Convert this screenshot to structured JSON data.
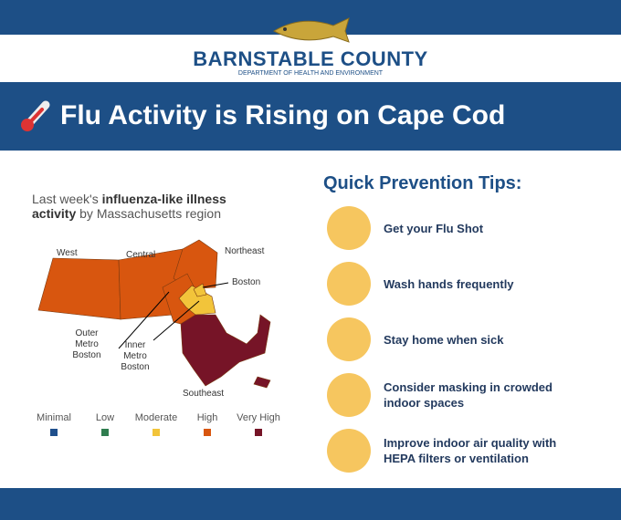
{
  "header": {
    "org": "BARNSTABLE COUNTY",
    "dept": "DEPARTMENT OF HEALTH AND ENVIRONMENT"
  },
  "title": "Flu Activity is Rising on Cape Cod",
  "map": {
    "caption": [
      [
        "Last week's ",
        "influenza-like illness"
      ],
      [
        "activity",
        " by Massachusetts region"
      ]
    ],
    "regions": {
      "west": [
        "West"
      ],
      "central": [
        "Central"
      ],
      "northeast": [
        "Northeast"
      ],
      "boston": [
        "Boston"
      ],
      "outer": [
        "Outer",
        "Metro",
        "Boston"
      ],
      "inner": [
        "Inner",
        "Metro",
        "Boston"
      ],
      "southeast": [
        "Southeast"
      ]
    },
    "legend": [
      {
        "label": "Minimal",
        "color": "#1f4f8c"
      },
      {
        "label": "Low",
        "color": "#2f7d4f"
      },
      {
        "label": "Moderate",
        "color": "#f2c43a"
      },
      {
        "label": "High",
        "color": "#d8560f"
      },
      {
        "label": "Very High",
        "color": "#761427"
      }
    ]
  },
  "tips": {
    "heading": "Quick Prevention Tips:",
    "items": [
      [
        "Get your Flu Shot"
      ],
      [
        "Wash hands frequently"
      ],
      [
        "Stay home when sick"
      ],
      [
        "Consider masking in crowded",
        "indoor spaces"
      ],
      [
        "Improve indoor air quality with",
        "HEPA filters or ventilation"
      ]
    ]
  }
}
